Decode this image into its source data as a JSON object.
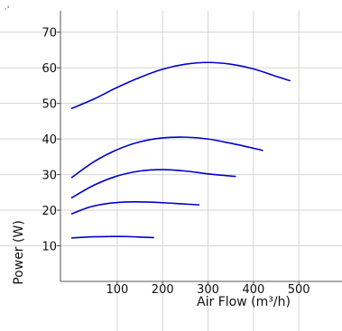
{
  "chart_data": {
    "type": "line",
    "title": "",
    "xlabel": "Air Flow (m³/h)",
    "ylabel": "Power (W)",
    "xlim": [
      -25,
      595
    ],
    "ylim": [
      0,
      76
    ],
    "grid": true,
    "legend": "none",
    "corner_mark": "·'",
    "line_color": "#0000cc",
    "grid_color": "#d4d4d4",
    "x_tick_values": [
      100,
      200,
      300,
      400,
      500
    ],
    "x_tick_labels": [
      "100",
      "200",
      "300",
      "400",
      "500"
    ],
    "y_tick_values": [
      10,
      20,
      30,
      40,
      50,
      60,
      70
    ],
    "y_tick_labels": [
      "10",
      "20",
      "30",
      "40",
      "50",
      "60",
      "70"
    ],
    "series": [
      {
        "x": [
          0,
          40,
          80,
          120,
          160,
          180
        ],
        "y": [
          12.2,
          12.5,
          12.6,
          12.6,
          12.4,
          12.3
        ]
      },
      {
        "x": [
          0,
          40,
          80,
          120,
          160,
          200,
          240,
          280
        ],
        "y": [
          19.0,
          20.9,
          21.9,
          22.3,
          22.3,
          22.1,
          21.8,
          21.5
        ]
      },
      {
        "x": [
          0,
          50,
          100,
          150,
          200,
          250,
          300,
          350,
          360
        ],
        "y": [
          23.5,
          27.1,
          29.6,
          31.0,
          31.4,
          31.0,
          30.2,
          29.6,
          29.5
        ]
      },
      {
        "x": [
          0,
          50,
          100,
          150,
          200,
          250,
          300,
          350,
          400,
          420
        ],
        "y": [
          29.2,
          33.7,
          37.0,
          39.2,
          40.3,
          40.5,
          40.0,
          38.8,
          37.4,
          36.8
        ]
      },
      {
        "x": [
          0,
          50,
          100,
          150,
          200,
          250,
          300,
          350,
          400,
          450,
          480
        ],
        "y": [
          48.6,
          51.3,
          54.5,
          57.3,
          59.6,
          61.0,
          61.5,
          61.0,
          59.7,
          57.6,
          56.4
        ]
      }
    ]
  }
}
